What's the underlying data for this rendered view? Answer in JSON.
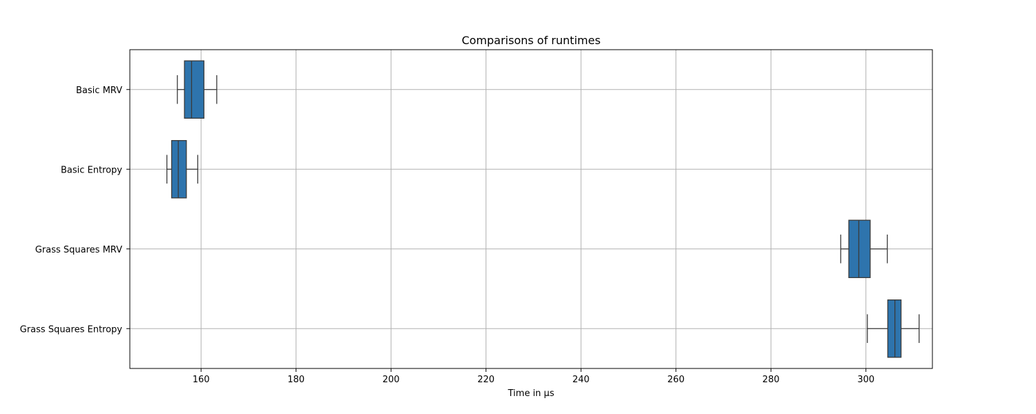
{
  "chart_data": {
    "type": "boxplot",
    "orientation": "horizontal",
    "title": "Comparisons of runtimes",
    "xlabel": "Time in µs",
    "ylabel": "",
    "xlim": [
      145,
      314
    ],
    "xticks": [
      160,
      180,
      200,
      220,
      240,
      260,
      280,
      300
    ],
    "grid": true,
    "box_color": "#2e74ad",
    "line_color": "#3a3a3a",
    "categories": [
      "Basic MRV",
      "Basic Entropy",
      "Grass Squares MRV",
      "Grass Squares Entropy"
    ],
    "boxes": [
      {
        "category": "Basic MRV",
        "whislo": 155.0,
        "q1": 156.5,
        "median": 158.0,
        "q3": 160.6,
        "whishi": 163.3
      },
      {
        "category": "Basic Entropy",
        "whislo": 152.8,
        "q1": 153.8,
        "median": 155.2,
        "q3": 156.9,
        "whishi": 159.3
      },
      {
        "category": "Grass Squares MRV",
        "whislo": 294.7,
        "q1": 296.4,
        "median": 298.5,
        "q3": 300.9,
        "whishi": 304.5
      },
      {
        "category": "Grass Squares Entropy",
        "whislo": 300.3,
        "q1": 304.6,
        "median": 306.1,
        "q3": 307.4,
        "whishi": 311.2
      }
    ]
  }
}
